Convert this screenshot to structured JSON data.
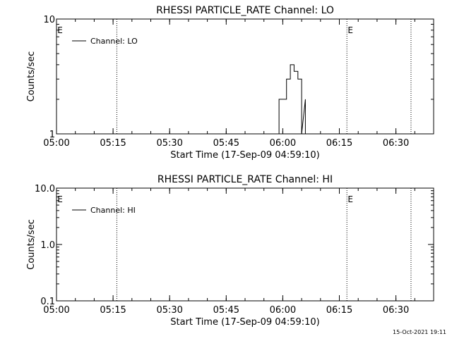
{
  "chart_data": [
    {
      "type": "line",
      "title": "RHESSI PARTICLE_RATE Channel: LO",
      "xlabel": "Start Time (17-Sep-09 04:59:10)",
      "ylabel": "Counts/sec",
      "yscale": "log",
      "ylim": [
        1,
        10
      ],
      "xlim": [
        "05:00",
        "06:40"
      ],
      "x_tick_labels": [
        "05:00",
        "05:15",
        "05:30",
        "05:45",
        "06:00",
        "06:15",
        "06:30"
      ],
      "y_tick_labels": [
        "1",
        "10"
      ],
      "legend": {
        "label": "Channel: LO",
        "position": "top-left"
      },
      "marker_labels": [
        "E",
        "E"
      ],
      "markers": [
        "05:16",
        "06:17",
        "06:34"
      ],
      "series": [
        {
          "name": "Channel: LO",
          "x": [
            "05:59",
            "05:59",
            "06:00",
            "06:00",
            "06:01",
            "06:01",
            "06:02",
            "06:02",
            "06:03",
            "06:03",
            "06:04",
            "06:04",
            "06:05",
            "06:05",
            "06:06",
            "06:06",
            "06:07"
          ],
          "y": [
            1,
            2,
            2,
            2,
            2,
            3,
            3,
            4,
            4,
            3.5,
            3.5,
            3,
            3,
            1,
            2,
            1,
            1
          ]
        }
      ]
    },
    {
      "type": "line",
      "title": "RHESSI PARTICLE_RATE Channel: HI",
      "xlabel": "Start Time (17-Sep-09 04:59:10)",
      "ylabel": "Counts/sec",
      "yscale": "log",
      "ylim": [
        0.1,
        10
      ],
      "xlim": [
        "05:00",
        "06:40"
      ],
      "x_tick_labels": [
        "05:00",
        "05:15",
        "05:30",
        "05:45",
        "06:00",
        "06:15",
        "06:30"
      ],
      "y_tick_labels": [
        "0.1",
        "1.0",
        "10.0"
      ],
      "legend": {
        "label": "Channel: HI",
        "position": "top-left"
      },
      "marker_labels": [
        "E",
        "E"
      ],
      "markers": [
        "05:16",
        "06:17",
        "06:34"
      ],
      "series": [
        {
          "name": "Channel: HI",
          "x": [],
          "y": []
        }
      ]
    }
  ],
  "footer": {
    "timestamp": "15-Oct-2021 19:11"
  }
}
